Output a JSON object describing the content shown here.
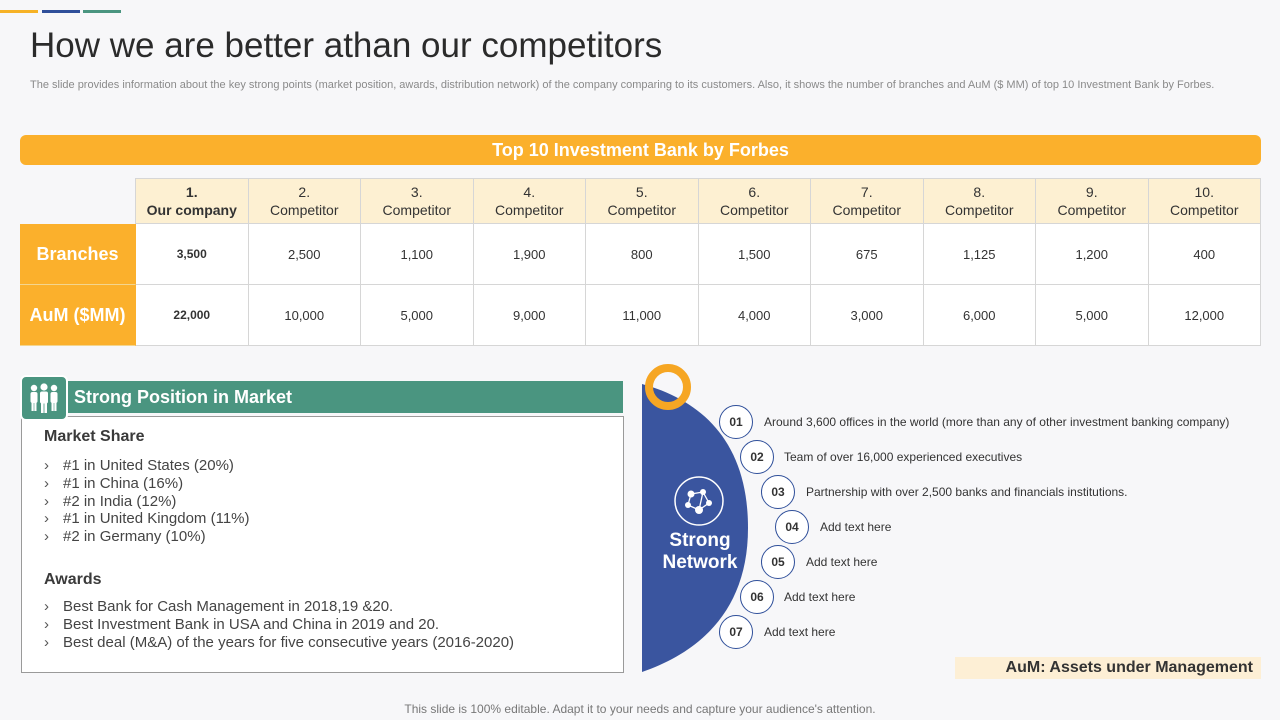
{
  "title": "How we are better athan our competitors",
  "subtitle": "The slide provides information about the key strong points (market position, awards, distribution network) of the company comparing to its customers. Also, it shows the number of branches and AuM ($ MM)  of top 10 Investment Bank by Forbes.",
  "accent_colors": [
    "#f6b226",
    "#2f4f9a",
    "#4a9580"
  ],
  "table": {
    "banner": "Top 10 Investment Bank by Forbes",
    "columns": [
      {
        "num": "1.",
        "name": "Our company"
      },
      {
        "num": "2.",
        "name": "Competitor"
      },
      {
        "num": "3.",
        "name": "Competitor"
      },
      {
        "num": "4.",
        "name": "Competitor"
      },
      {
        "num": "5.",
        "name": "Competitor"
      },
      {
        "num": "6.",
        "name": "Competitor"
      },
      {
        "num": "7.",
        "name": "Competitor"
      },
      {
        "num": "8.",
        "name": "Competitor"
      },
      {
        "num": "9.",
        "name": "Competitor"
      },
      {
        "num": "10.",
        "name": "Competitor"
      }
    ],
    "rows": [
      {
        "label": "Branches",
        "values": [
          "3,500",
          "2,500",
          "1,100",
          "1,900",
          "800",
          "1,500",
          "675",
          "1,125",
          "1,200",
          "400"
        ]
      },
      {
        "label": "AuM ($MM)",
        "values": [
          "22,000",
          "10,000",
          "5,000",
          "9,000",
          "11,000",
          "4,000",
          "3,000",
          "6,000",
          "5,000",
          "12,000"
        ]
      }
    ]
  },
  "market": {
    "header": "Strong Position in Market",
    "icon": "team-icon",
    "share_title": "Market Share",
    "share_items": [
      "#1 in United States (20%)",
      "#1 in China (16%)",
      "#2 in India (12%)",
      "#1 in United Kingdom (11%)",
      "#2 in Germany (10%)"
    ],
    "awards_title": "Awards",
    "awards_items": [
      "Best Bank for Cash Management  in 2018,19 &20.",
      "Best Investment Bank in USA and China in 2019 and 20.",
      "Best deal  (M&A)  of the years for five consecutive years (2016-2020)"
    ]
  },
  "network": {
    "label_line1": "Strong",
    "label_line2": "Network",
    "icon": "network-icon",
    "items": [
      {
        "num": "01",
        "text": "Around 3,600 offices in the world (more than any of other investment banking company)"
      },
      {
        "num": "02",
        "text": "Team of over 16,000 experienced executives"
      },
      {
        "num": "03",
        "text": "Partnership with over 2,500 banks and financials institutions."
      },
      {
        "num": "04",
        "text": "Add text here"
      },
      {
        "num": "05",
        "text": "Add text here"
      },
      {
        "num": "06",
        "text": "Add text here"
      },
      {
        "num": "07",
        "text": "Add text here"
      }
    ]
  },
  "aum_note": "AuM: Assets under Management",
  "footer": "This slide is 100% editable. Adapt it to your needs and capture your audience's attention."
}
